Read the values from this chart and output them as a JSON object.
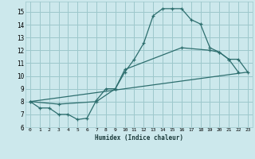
{
  "xlabel": "Humidex (Indice chaleur)",
  "xlim": [
    -0.5,
    23.5
  ],
  "ylim": [
    6,
    15.8
  ],
  "yticks": [
    6,
    7,
    8,
    9,
    10,
    11,
    12,
    13,
    14,
    15
  ],
  "xticks": [
    0,
    1,
    2,
    3,
    4,
    5,
    6,
    7,
    8,
    9,
    10,
    11,
    12,
    13,
    14,
    15,
    16,
    17,
    18,
    19,
    20,
    21,
    22,
    23
  ],
  "bg_color": "#cce8ec",
  "grid_color": "#9dc8cc",
  "line_color": "#2d6e6e",
  "line1_x": [
    0,
    1,
    2,
    3,
    4,
    5,
    6,
    7,
    8,
    9,
    10,
    11,
    12,
    13,
    14,
    15,
    16,
    17,
    18,
    19,
    20,
    21,
    22
  ],
  "line1_y": [
    8.0,
    7.5,
    7.5,
    7.0,
    7.0,
    6.6,
    6.7,
    8.1,
    9.0,
    9.0,
    10.3,
    11.3,
    12.55,
    14.7,
    15.25,
    15.25,
    15.25,
    14.4,
    14.05,
    12.2,
    11.85,
    11.3,
    10.3
  ],
  "line2_x": [
    0,
    3,
    7,
    9,
    10,
    16,
    19,
    20,
    21,
    22,
    23
  ],
  "line2_y": [
    8.0,
    7.8,
    8.0,
    9.0,
    10.5,
    12.2,
    12.0,
    11.85,
    11.3,
    11.3,
    10.3
  ],
  "line3_x": [
    0,
    23
  ],
  "line3_y": [
    8.0,
    10.3
  ]
}
